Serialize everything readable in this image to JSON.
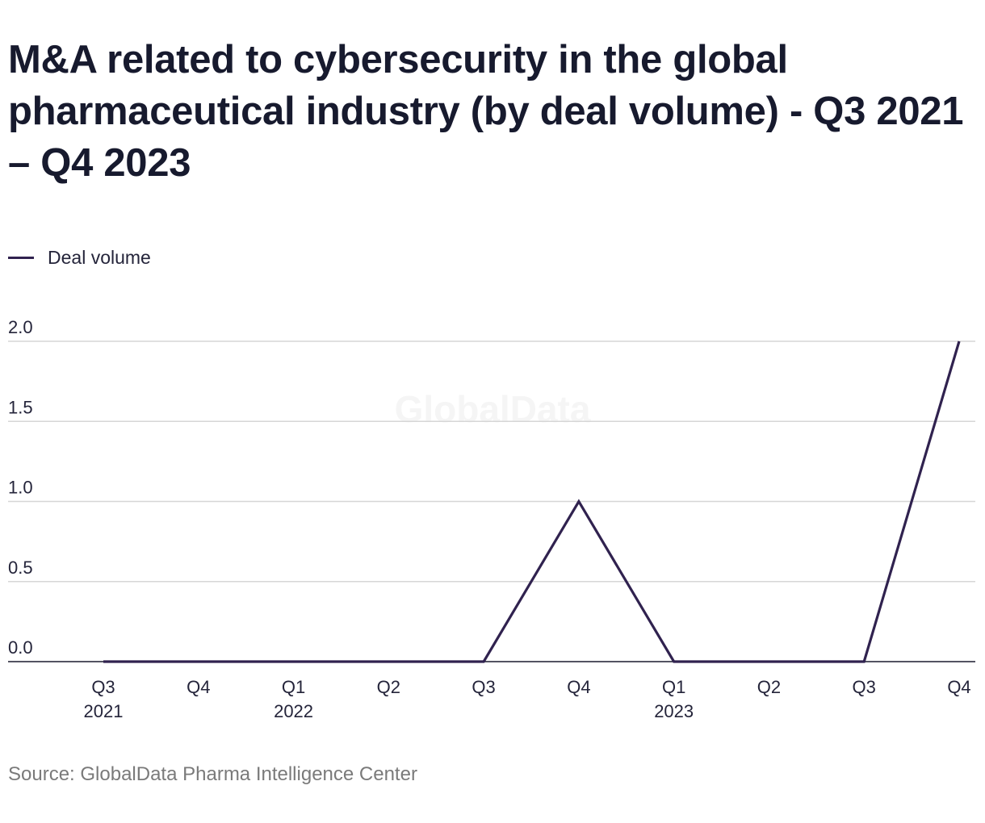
{
  "title": "M&A related to cybersecurity in the global pharmaceutical industry (by deal volume) - Q3 2021 – Q4 2023",
  "legend": [
    {
      "label": "Deal volume",
      "color": "#30224f"
    }
  ],
  "watermark": "GlobalData",
  "source": "Source: GlobalData Pharma Intelligence Center",
  "chart_data": {
    "type": "line",
    "x": [
      "Q3 2021",
      "Q4 2021",
      "Q1 2022",
      "Q2 2022",
      "Q3 2022",
      "Q4 2022",
      "Q1 2023",
      "Q2 2023",
      "Q3 2023",
      "Q4 2023"
    ],
    "tick_labels": [
      [
        "Q3",
        "2021"
      ],
      [
        "Q4",
        ""
      ],
      [
        "Q1",
        "2022"
      ],
      [
        "Q2",
        ""
      ],
      [
        "Q3",
        ""
      ],
      [
        "Q4",
        ""
      ],
      [
        "Q1",
        "2023"
      ],
      [
        "Q2",
        ""
      ],
      [
        "Q3",
        ""
      ],
      [
        "Q4",
        ""
      ]
    ],
    "series": [
      {
        "name": "Deal volume",
        "values": [
          0,
          0,
          0,
          0,
          0,
          1,
          0,
          0,
          0,
          2
        ],
        "color": "#30224f"
      }
    ],
    "ylim": [
      0,
      2
    ],
    "yticks": [
      "0.0",
      "0.5",
      "1.0",
      "1.5",
      "2.0"
    ],
    "grid": true,
    "legend_position": "top-left"
  }
}
